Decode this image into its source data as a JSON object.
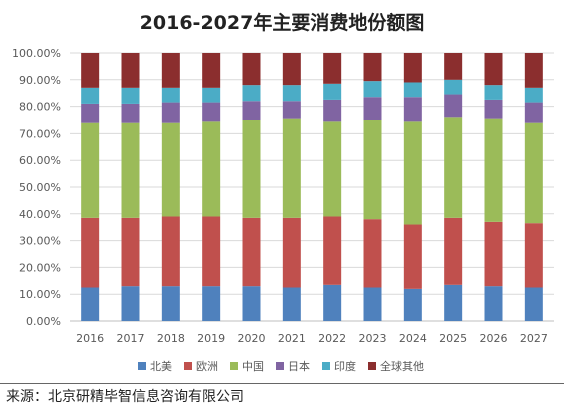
{
  "title": "2016-2027年主要消费地份额图",
  "source": "来源：北京研精毕智信息咨询有限公司",
  "chart_data": {
    "type": "bar",
    "stacked": true,
    "title": "2016-2027年主要消费地份额图",
    "categories": [
      "2016",
      "2017",
      "2018",
      "2019",
      "2020",
      "2021",
      "2022",
      "2023",
      "2024",
      "2025",
      "2026",
      "2027"
    ],
    "y_ticks": [
      "0.00%",
      "10.00%",
      "20.00%",
      "30.00%",
      "40.00%",
      "50.00%",
      "60.00%",
      "70.00%",
      "80.00%",
      "90.00%",
      "100.00%"
    ],
    "ylim": [
      0,
      100
    ],
    "grid": true,
    "legend_position": "bottom",
    "series": [
      {
        "name": "北美",
        "color": "#4f81bd",
        "values": [
          12.5,
          13.0,
          13.0,
          13.0,
          13.0,
          12.5,
          13.5,
          12.5,
          12.0,
          13.5,
          13.0,
          12.5
        ]
      },
      {
        "name": "欧洲",
        "color": "#c0504d",
        "values": [
          26.0,
          25.5,
          26.0,
          26.0,
          25.5,
          26.0,
          25.5,
          25.5,
          24.0,
          25.0,
          24.0,
          24.0
        ]
      },
      {
        "name": "中国",
        "color": "#9bbb59",
        "values": [
          35.5,
          35.5,
          35.0,
          35.5,
          36.5,
          37.0,
          35.5,
          37.0,
          38.5,
          37.5,
          38.5,
          37.5
        ]
      },
      {
        "name": "日本",
        "color": "#8064a2",
        "values": [
          7.0,
          7.0,
          7.5,
          7.0,
          7.0,
          6.5,
          8.0,
          8.5,
          9.0,
          8.5,
          7.0,
          7.5
        ]
      },
      {
        "name": "印度",
        "color": "#4bacc6",
        "values": [
          6.0,
          6.0,
          5.5,
          5.5,
          6.0,
          6.0,
          6.0,
          6.0,
          5.5,
          5.5,
          5.5,
          5.5
        ]
      },
      {
        "name": "全球其他",
        "color": "#8b2e2e",
        "values": [
          13.0,
          13.0,
          13.0,
          13.0,
          12.0,
          12.0,
          11.5,
          10.5,
          11.0,
          10.0,
          12.0,
          13.0
        ]
      }
    ]
  }
}
